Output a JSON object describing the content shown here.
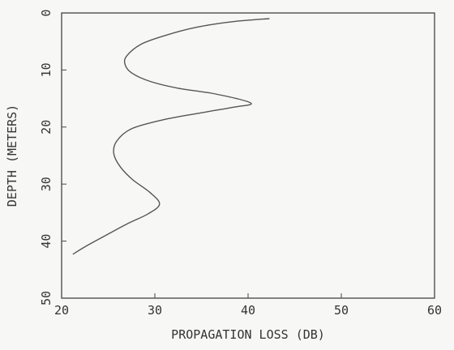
{
  "chart_data": {
    "type": "line",
    "title": "",
    "xlabel": "PROPAGATION LOSS (DB)",
    "ylabel": "DEPTH (METERS)",
    "xlim": [
      20,
      60
    ],
    "ylim": [
      0,
      50
    ],
    "y_inverted": true,
    "xticks": [
      "20",
      "30",
      "40",
      "50",
      "60"
    ],
    "yticks": [
      "0",
      "10",
      "20",
      "30",
      "40",
      "50"
    ],
    "grid": false,
    "series": [
      {
        "name": "",
        "points": [
          [
            42.3,
            1.0
          ],
          [
            38.5,
            1.5
          ],
          [
            34.5,
            2.5
          ],
          [
            31.0,
            4.0
          ],
          [
            28.5,
            5.5
          ],
          [
            27.0,
            7.5
          ],
          [
            26.8,
            9.0
          ],
          [
            27.5,
            10.5
          ],
          [
            29.5,
            12.0
          ],
          [
            32.5,
            13.2
          ],
          [
            36.5,
            14.2
          ],
          [
            40.3,
            15.8
          ],
          [
            38.5,
            16.5
          ],
          [
            35.0,
            17.5
          ],
          [
            31.0,
            18.7
          ],
          [
            27.5,
            20.3
          ],
          [
            25.9,
            22.5
          ],
          [
            25.6,
            24.7
          ],
          [
            26.3,
            27.0
          ],
          [
            27.6,
            29.2
          ],
          [
            29.5,
            31.5
          ],
          [
            30.5,
            33.5
          ],
          [
            29.3,
            35.2
          ],
          [
            27.0,
            37.0
          ],
          [
            24.5,
            39.2
          ],
          [
            22.5,
            41.0
          ],
          [
            21.2,
            42.3
          ]
        ]
      }
    ]
  }
}
